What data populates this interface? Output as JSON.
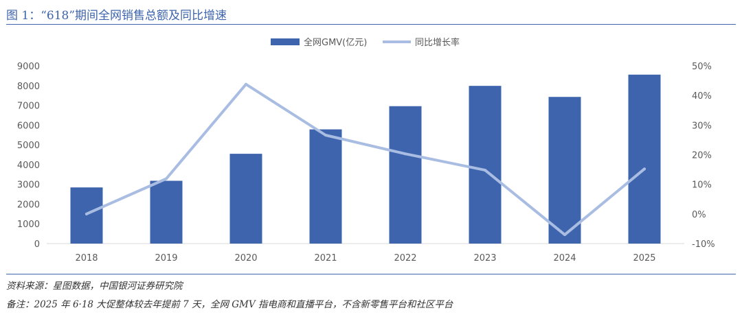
{
  "header": {
    "title": "图 1：“618”期间全网销售总额及同比增速"
  },
  "chart_data": {
    "type": "bar+line",
    "categories": [
      "2018",
      "2019",
      "2020",
      "2021",
      "2022",
      "2023",
      "2024",
      "2025"
    ],
    "series": [
      {
        "name": "全网GMV(亿元)",
        "kind": "bar",
        "axis": "left",
        "values": [
          2844,
          3180,
          4548,
          5784,
          6959,
          7987,
          7428,
          8556
        ]
      },
      {
        "name": "同比增长率",
        "kind": "line",
        "axis": "right",
        "values": [
          0.0,
          11.9,
          43.8,
          26.6,
          20.3,
          14.8,
          -7.0,
          15.2
        ]
      }
    ],
    "left_axis": {
      "ylim": [
        0,
        9000
      ],
      "ticks": [
        "0",
        "1000",
        "2000",
        "3000",
        "4000",
        "5000",
        "6000",
        "7000",
        "8000",
        "9000"
      ]
    },
    "right_axis": {
      "ylim": [
        -10,
        50
      ],
      "ticks": [
        "-10%",
        "0%",
        "10%",
        "20%",
        "30%",
        "40%",
        "50%"
      ]
    },
    "legend_position": "top-center",
    "colors": {
      "bar": "#3d64ad",
      "line": "#a9bde3",
      "axis": "#d9d9d9",
      "title": "#3d64ad"
    }
  },
  "footer": {
    "source": "资料来源：星图数据，中国银河证券研究院",
    "note": "备注：2025 年 6·18 大促整体较去年提前 7 天，全网 GMV 指电商和直播平台，不含新零售平台和社区平台"
  }
}
